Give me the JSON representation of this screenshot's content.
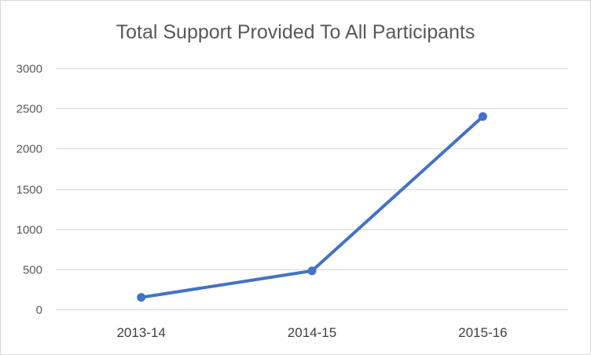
{
  "chart_data": {
    "type": "line",
    "title": "Total Support Provided To All Participants",
    "xlabel": "",
    "ylabel": "",
    "categories": [
      "2013-14",
      "2014-15",
      "2015-16"
    ],
    "series": [
      {
        "values": [
          150,
          480,
          2400
        ],
        "color": "#4472c4"
      }
    ],
    "ylim": [
      0,
      3000
    ],
    "yticks": [
      0,
      500,
      1000,
      1500,
      2000,
      2500,
      3000
    ],
    "grid": true,
    "legend": "none"
  }
}
